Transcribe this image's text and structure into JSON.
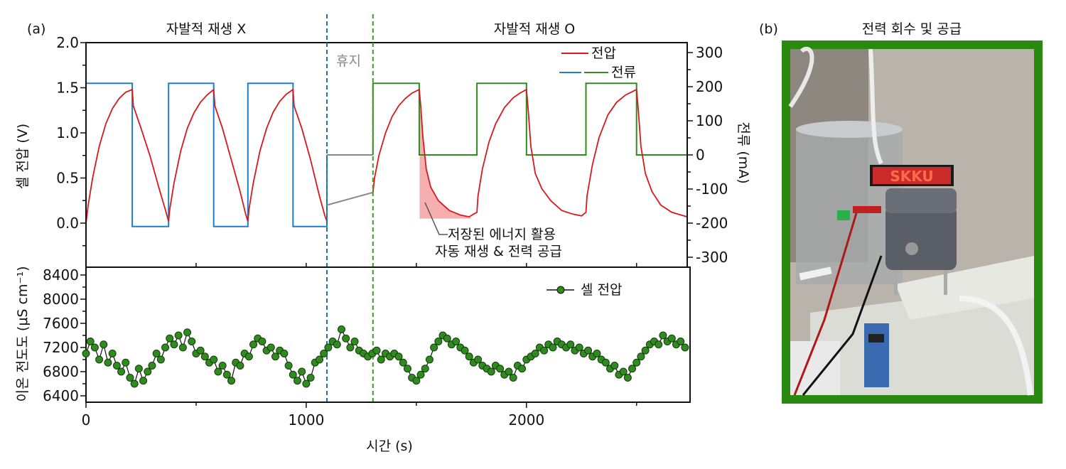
{
  "panel_a_label": "(a)",
  "panel_b_label": "(b)",
  "phase_x_title": "자발적 재생 X",
  "phase_o_title": "자발적 재생 O",
  "rest_label": "휴지",
  "annotation": {
    "line1": "저장된 에너지 활용",
    "line2": "자동 재생 & 전력 공급"
  },
  "photo": {
    "title": "전력 회수 및 공급",
    "display_text": "SKKU",
    "frame_color": "#2a8a10"
  },
  "colors": {
    "voltage": "#d7191c",
    "current_x": "#1f7fc4",
    "current_o": "#2e8b1e",
    "rest": "#888888",
    "marker": "#2e8b1e",
    "shade": "#f4a0a0"
  },
  "chart_data": [
    {
      "type": "line",
      "xlabel": "시간 (s)",
      "ylabel": "셀 전압 (V)",
      "y2label": "전류 (mA)",
      "xlim": [
        0,
        2730
      ],
      "ylim": [
        -0.5,
        2.0
      ],
      "y2lim": [
        -330,
        330
      ],
      "x_ticks": [
        "0",
        "1000",
        "2000"
      ],
      "y_ticks": [
        "0.0",
        "0.5",
        "1.0",
        "1.5",
        "2.0"
      ],
      "y2_ticks": [
        "-300",
        "-200",
        "-100",
        "0",
        "100",
        "200",
        "300"
      ],
      "legend": {
        "position": "top-right",
        "voltage": "전압",
        "current": "전류"
      },
      "rest_period": [
        1094,
        1303
      ],
      "series": {
        "voltage_x": [
          [
            0,
            0.0
          ],
          [
            10,
            0.2
          ],
          [
            30,
            0.5
          ],
          [
            60,
            0.85
          ],
          [
            90,
            1.1
          ],
          [
            120,
            1.27
          ],
          [
            150,
            1.38
          ],
          [
            180,
            1.45
          ],
          [
            210,
            1.48
          ],
          [
            215,
            1.3
          ],
          [
            250,
            1.05
          ],
          [
            290,
            0.75
          ],
          [
            330,
            0.4
          ],
          [
            360,
            0.15
          ],
          [
            375,
            0.02
          ],
          [
            380,
            0.15
          ],
          [
            400,
            0.45
          ],
          [
            430,
            0.8
          ],
          [
            460,
            1.05
          ],
          [
            490,
            1.22
          ],
          [
            520,
            1.34
          ],
          [
            550,
            1.42
          ],
          [
            580,
            1.48
          ],
          [
            585,
            1.3
          ],
          [
            620,
            1.05
          ],
          [
            660,
            0.7
          ],
          [
            700,
            0.35
          ],
          [
            725,
            0.1
          ],
          [
            735,
            0.02
          ],
          [
            740,
            0.15
          ],
          [
            760,
            0.45
          ],
          [
            790,
            0.8
          ],
          [
            820,
            1.05
          ],
          [
            850,
            1.23
          ],
          [
            880,
            1.35
          ],
          [
            910,
            1.43
          ],
          [
            940,
            1.48
          ],
          [
            945,
            1.3
          ],
          [
            980,
            1.05
          ],
          [
            1020,
            0.7
          ],
          [
            1060,
            0.3
          ],
          [
            1085,
            0.08
          ],
          [
            1094,
            0.02
          ]
        ],
        "voltage_rest": [
          [
            1094,
            0.2
          ],
          [
            1303,
            0.34
          ]
        ],
        "voltage_o": [
          [
            1303,
            0.34
          ],
          [
            1310,
            0.5
          ],
          [
            1330,
            0.75
          ],
          [
            1360,
            1.0
          ],
          [
            1390,
            1.18
          ],
          [
            1420,
            1.3
          ],
          [
            1450,
            1.38
          ],
          [
            1480,
            1.44
          ],
          [
            1513,
            1.48
          ],
          [
            1520,
            1.3
          ],
          [
            1530,
            0.95
          ],
          [
            1545,
            0.6
          ],
          [
            1565,
            0.4
          ],
          [
            1600,
            0.25
          ],
          [
            1650,
            0.14
          ],
          [
            1700,
            0.09
          ],
          [
            1740,
            0.07
          ],
          [
            1760,
            0.1
          ],
          [
            1775,
            0.12
          ],
          [
            1780,
            0.3
          ],
          [
            1800,
            0.6
          ],
          [
            1830,
            0.9
          ],
          [
            1860,
            1.1
          ],
          [
            1900,
            1.28
          ],
          [
            1940,
            1.39
          ],
          [
            1970,
            1.44
          ],
          [
            2000,
            1.48
          ],
          [
            2008,
            1.25
          ],
          [
            2020,
            0.85
          ],
          [
            2040,
            0.55
          ],
          [
            2070,
            0.38
          ],
          [
            2110,
            0.25
          ],
          [
            2160,
            0.14
          ],
          [
            2210,
            0.1
          ],
          [
            2250,
            0.08
          ],
          [
            2270,
            0.12
          ],
          [
            2275,
            0.3
          ],
          [
            2300,
            0.65
          ],
          [
            2330,
            0.95
          ],
          [
            2370,
            1.2
          ],
          [
            2410,
            1.34
          ],
          [
            2450,
            1.42
          ],
          [
            2500,
            1.48
          ],
          [
            2508,
            1.25
          ],
          [
            2520,
            0.85
          ],
          [
            2540,
            0.55
          ],
          [
            2570,
            0.35
          ],
          [
            2610,
            0.2
          ],
          [
            2660,
            0.12
          ],
          [
            2730,
            0.07
          ]
        ],
        "current_x_mA": [
          [
            0,
            210
          ],
          [
            210,
            210
          ],
          [
            210,
            -210
          ],
          [
            375,
            -210
          ],
          [
            375,
            210
          ],
          [
            580,
            210
          ],
          [
            580,
            -210
          ],
          [
            735,
            -210
          ],
          [
            735,
            210
          ],
          [
            940,
            210
          ],
          [
            940,
            -210
          ],
          [
            1094,
            -210
          ],
          [
            1094,
            0
          ]
        ],
        "current_rest_mA": [
          [
            1094,
            0
          ],
          [
            1303,
            0
          ]
        ],
        "current_o_mA": [
          [
            1303,
            0
          ],
          [
            1303,
            210
          ],
          [
            1513,
            210
          ],
          [
            1513,
            0
          ],
          [
            1775,
            0
          ],
          [
            1775,
            210
          ],
          [
            2000,
            210
          ],
          [
            2000,
            0
          ],
          [
            2270,
            0
          ],
          [
            2270,
            210
          ],
          [
            2500,
            210
          ],
          [
            2500,
            0
          ],
          [
            2730,
            0
          ]
        ]
      },
      "shaded_region": {
        "x": [
          1515,
          1750
        ],
        "baseline_V": 0.05
      }
    },
    {
      "type": "scatter",
      "xlabel": "시간 (s)",
      "ylabel": "이온 전도도 (μS cm⁻¹)",
      "xlim": [
        0,
        2730
      ],
      "ylim": [
        6250,
        8550
      ],
      "y_ticks": [
        "6400",
        "6800",
        "7200",
        "7600",
        "8000",
        "8400"
      ],
      "legend": {
        "position": "top-right",
        "label": "셀 전압"
      },
      "x_step_s": 20,
      "values": [
        7100,
        7300,
        7200,
        7000,
        7250,
        6950,
        7100,
        6900,
        6800,
        6950,
        6700,
        6600,
        6850,
        6650,
        6800,
        6900,
        7100,
        7000,
        7200,
        7350,
        7250,
        7400,
        7200,
        7450,
        7300,
        7100,
        7150,
        7050,
        6950,
        7000,
        6800,
        6900,
        6750,
        6650,
        6950,
        6900,
        7100,
        7050,
        7250,
        7350,
        7300,
        7150,
        7200,
        7050,
        7150,
        7100,
        6900,
        6750,
        6650,
        6800,
        6600,
        6700,
        6950,
        7000,
        7100,
        7200,
        7300,
        7250,
        7500,
        7350,
        7200,
        7300,
        7150,
        7100,
        7050,
        7100,
        7150,
        7000,
        7100,
        7050,
        7100,
        7050,
        6950,
        6850,
        6700,
        6650,
        6750,
        6850,
        7000,
        7200,
        7300,
        7400,
        7350,
        7250,
        7300,
        7200,
        7150,
        7050,
        6950,
        7000,
        6900,
        6850,
        6800,
        6900,
        6850,
        6750,
        6800,
        6700,
        6900,
        6850,
        7000,
        7050,
        7100,
        7200,
        7150,
        7250,
        7200,
        7300,
        7250,
        7200,
        7250,
        7150,
        7200,
        7100,
        7150,
        7050,
        7100,
        7000,
        6950,
        6850,
        6900,
        6750,
        6800,
        6700,
        6850,
        6950,
        7050,
        7150,
        7250,
        7300,
        7250,
        7400,
        7300,
        7350,
        7250,
        7300,
        7200
      ]
    }
  ]
}
